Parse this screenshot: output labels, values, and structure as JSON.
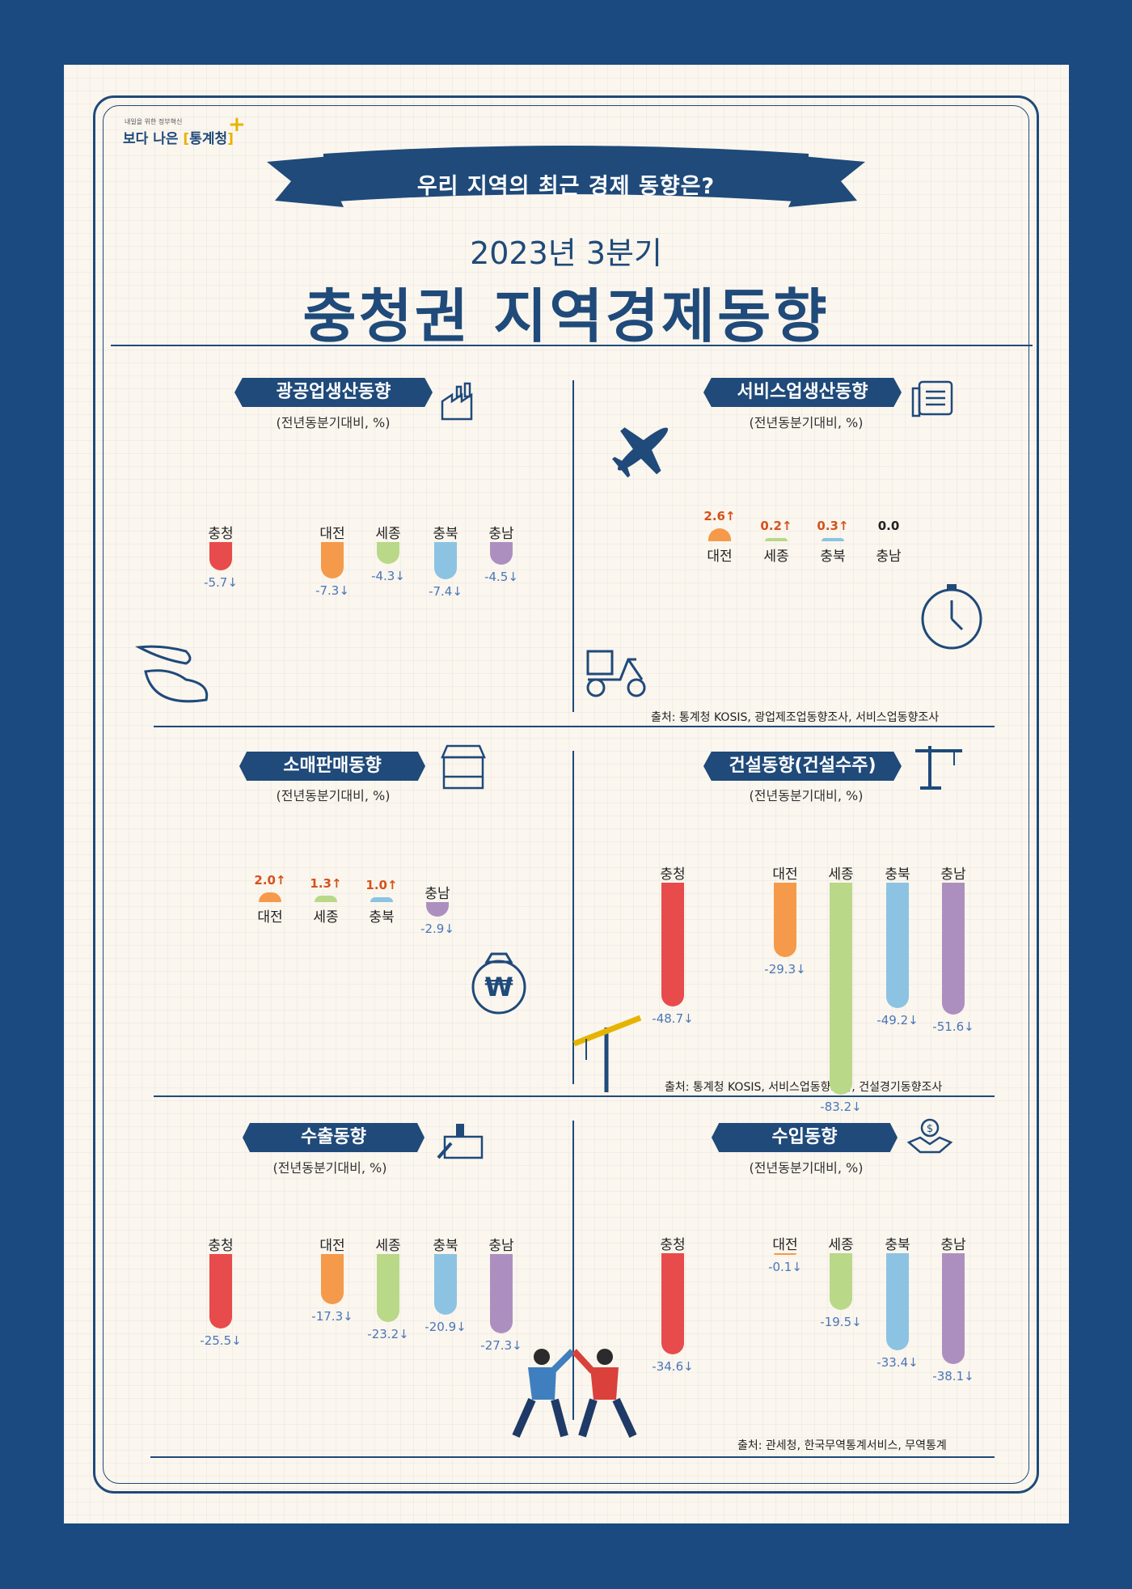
{
  "header": {
    "logo_sub": "내일을 위한 정부혁신",
    "logo_main": "보다 나은",
    "logo_brand": "통계청",
    "ribbon": "우리 지역의 최근 경제 동향은?",
    "subtitle": "2023년 3분기",
    "title": "충청권 지역경제동향"
  },
  "colors": {
    "navy": "#1f4a7a",
    "충청": "#e84b4b",
    "대전": "#f59a4a",
    "세종": "#b9d888",
    "충북": "#8cc3e2",
    "충남": "#ad8fbf",
    "up": "#d5521a",
    "down": "#4a76b8"
  },
  "sections": {
    "mining": {
      "title": "광공업생산동향",
      "unit": "(전년동분기대비, %)"
    },
    "service": {
      "title": "서비스업생산동향",
      "unit": "(전년동분기대비, %)"
    },
    "retail": {
      "title": "소매판매동향",
      "unit": "(전년동분기대비, %)"
    },
    "construction": {
      "title": "건설동향(건설수주)",
      "unit": "(전년동분기대비, %)"
    },
    "export": {
      "title": "수출동향",
      "unit": "(전년동분기대비, %)"
    },
    "import": {
      "title": "수입동향",
      "unit": "(전년동분기대비, %)"
    }
  },
  "sources": {
    "s1": "출처: 통계청 KOSIS, 광업제조업동향조사, 서비스업동향조사",
    "s2": "출처: 통계청 KOSIS, 서비스업동향조사, 건설경기동향조사",
    "s3": "출처: 관세청, 한국무역통계서비스, 무역통계"
  },
  "chart_data": [
    {
      "type": "bar",
      "title": "광공업생산동향",
      "unit": "(전년동분기대비, %)",
      "categories": [
        "충청",
        "대전",
        "세종",
        "충북",
        "충남"
      ],
      "values": [
        -5.7,
        -7.3,
        -4.3,
        -7.4,
        -4.5
      ],
      "labels": [
        "-5.7↓",
        "-7.3↓",
        "-4.3↓",
        "-7.4↓",
        "-4.5↓"
      ]
    },
    {
      "type": "bar",
      "title": "서비스업생산동향",
      "unit": "(전년동분기대비, %)",
      "categories": [
        "대전",
        "세종",
        "충북",
        "충남"
      ],
      "values": [
        2.6,
        0.2,
        0.3,
        0.0
      ],
      "labels": [
        "2.6↑",
        "0.2↑",
        "0.3↑",
        "0.0"
      ]
    },
    {
      "type": "bar",
      "title": "소매판매동향",
      "unit": "(전년동분기대비, %)",
      "categories": [
        "대전",
        "세종",
        "충북",
        "충남"
      ],
      "values": [
        2.0,
        1.3,
        1.0,
        -2.9
      ],
      "labels": [
        "2.0↑",
        "1.3↑",
        "1.0↑",
        "-2.9↓"
      ]
    },
    {
      "type": "bar",
      "title": "건설동향(건설수주)",
      "unit": "(전년동분기대비, %)",
      "categories": [
        "충청",
        "대전",
        "세종",
        "충북",
        "충남"
      ],
      "values": [
        -48.7,
        -29.3,
        -83.2,
        -49.2,
        -51.6
      ],
      "labels": [
        "-48.7↓",
        "-29.3↓",
        "-83.2↓",
        "-49.2↓",
        "-51.6↓"
      ]
    },
    {
      "type": "bar",
      "title": "수출동향",
      "unit": "(전년동분기대비, %)",
      "categories": [
        "충청",
        "대전",
        "세종",
        "충북",
        "충남"
      ],
      "values": [
        -25.5,
        -17.3,
        -23.2,
        -20.9,
        -27.3
      ],
      "labels": [
        "-25.5↓",
        "-17.3↓",
        "-23.2↓",
        "-20.9↓",
        "-27.3↓"
      ]
    },
    {
      "type": "bar",
      "title": "수입동향",
      "unit": "(전년동분기대비, %)",
      "categories": [
        "충청",
        "대전",
        "세종",
        "충북",
        "충남"
      ],
      "values": [
        -34.6,
        -0.1,
        -19.5,
        -33.4,
        -38.1
      ],
      "labels": [
        "-34.6↓",
        "-0.1↓",
        "-19.5↓",
        "-33.4↓",
        "-38.1↓"
      ]
    }
  ]
}
